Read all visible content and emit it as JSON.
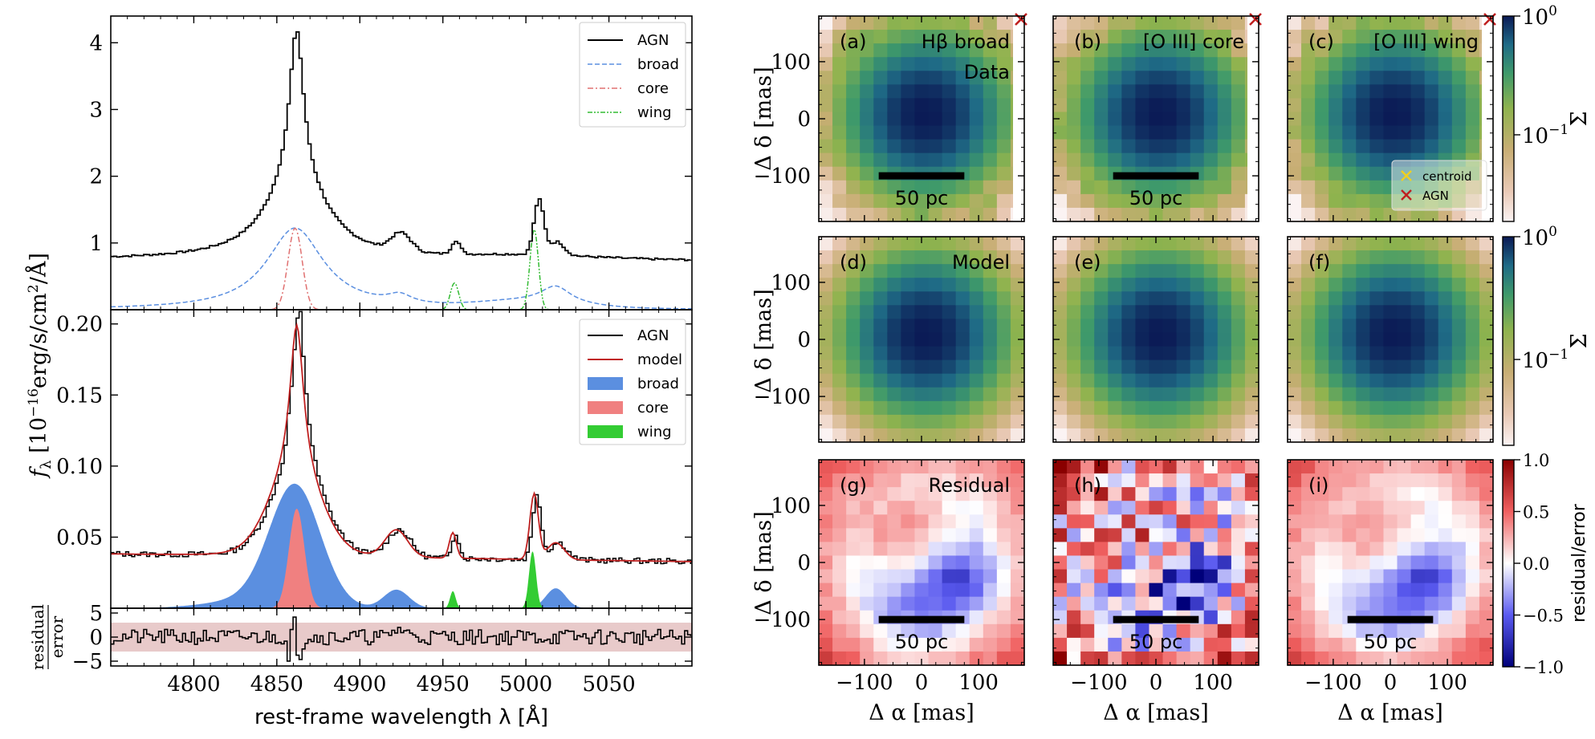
{
  "figure": {
    "xlabel": "rest-frame wavelength λ [Å]",
    "ylabel": "f_λ [10^{-16} erg/s/cm^2/Å]",
    "resid_ylabel_num": "residual",
    "resid_ylabel_den": "error",
    "map_xlabel": "Δ α [mas]",
    "map_ylabel": "Δ δ [mas]",
    "colorbar_sigma_label": "Σ",
    "colorbar_resid_label": "residual/error",
    "scalebar_label": "50 pc"
  },
  "chart_data": [
    {
      "id": "spectrum_top",
      "type": "line",
      "x_range": [
        4750,
        5100
      ],
      "ylim": [
        0,
        4.4
      ],
      "xticks": [
        4800,
        4850,
        4900,
        4950,
        5000,
        5050
      ],
      "yticks": [
        1,
        2,
        3,
        4
      ],
      "xtick_labels_shown": false,
      "legend": {
        "placement": "top-right",
        "entries": [
          {
            "label": "AGN",
            "color": "#000000",
            "style": "solid"
          },
          {
            "label": "broad",
            "color": "#5b8fe0",
            "style": "dashed"
          },
          {
            "label": "core",
            "color": "#e07070",
            "style": "dashdot"
          },
          {
            "label": "wing",
            "color": "#33bb33",
            "style": "dashdotdot"
          }
        ]
      },
      "continuum": 0.75,
      "peaks": {
        "Hbeta": {
          "x": 4861,
          "y": 4.15
        },
        "OIII_5007": {
          "x": 5007,
          "y": 1.62
        },
        "OIII_4959": {
          "x": 4959,
          "y": 0.98
        },
        "FeII_4924": {
          "x": 4924,
          "y": 1.06
        }
      },
      "components": {
        "broad_Hbeta": {
          "center": 4861,
          "peak": 1.25,
          "fwhm": 45
        },
        "core_Hbeta": {
          "center": 4861,
          "peak": 1.22,
          "fwhm": 10
        },
        "broad_4924": {
          "center": 4924,
          "peak": 0.15,
          "fwhm": 22
        },
        "broad_5018": {
          "center": 5018,
          "peak": 0.25,
          "fwhm": 24
        },
        "broad_OIII": {
          "center": 5000,
          "peak": 0.12,
          "fwhm": 60
        },
        "wing_4959": {
          "center": 4957,
          "peak": 0.4,
          "fwhm": 6
        },
        "wing_5007": {
          "center": 5005,
          "peak": 1.2,
          "fwhm": 6
        }
      }
    },
    {
      "id": "spectrum_middle",
      "type": "line",
      "x_range": [
        4750,
        5100
      ],
      "ylim": [
        0,
        0.21
      ],
      "xticks": [
        4800,
        4850,
        4900,
        4950,
        5000,
        5050
      ],
      "yticks": [
        0.05,
        0.1,
        0.15,
        0.2
      ],
      "ytick_labels": [
        "0.05",
        "0.10",
        "0.15",
        "0.20"
      ],
      "xtick_labels_shown": false,
      "legend": {
        "placement": "top-right",
        "entries": [
          {
            "label": "AGN",
            "color": "#000000",
            "kind": "line"
          },
          {
            "label": "model",
            "color": "#c02020",
            "kind": "line"
          },
          {
            "label": "broad",
            "color": "#5b8fe0",
            "kind": "patch"
          },
          {
            "label": "core",
            "color": "#f08080",
            "kind": "patch"
          },
          {
            "label": "wing",
            "color": "#33cc33",
            "kind": "patch"
          }
        ]
      },
      "continuum": 0.038,
      "peaks": {
        "Hbeta": {
          "x": 4861,
          "y": 0.2
        },
        "OIII_5007": {
          "x": 5005,
          "y": 0.085
        },
        "OIII_4959": {
          "x": 4957,
          "y": 0.058
        },
        "FeII_4924": {
          "x": 4922,
          "y": 0.059
        }
      },
      "filled_components": {
        "broad_Hbeta": {
          "center": 4861,
          "peak": 0.084,
          "fwhm": 36
        },
        "core_Hbeta": {
          "center": 4862,
          "peak": 0.07,
          "fwhm": 11
        },
        "broad_4924": {
          "center": 4922,
          "peak": 0.013,
          "fwhm": 18
        },
        "broad_5018": {
          "center": 5018,
          "peak": 0.014,
          "fwhm": 14
        },
        "wing_4959": {
          "center": 4956,
          "peak": 0.012,
          "fwhm": 4
        },
        "wing_5007": {
          "center": 5004,
          "peak": 0.04,
          "fwhm": 5
        }
      }
    },
    {
      "id": "spectrum_residual",
      "type": "line",
      "x_range": [
        4750,
        5100
      ],
      "ylim": [
        -6,
        6
      ],
      "yticks": [
        -5,
        0,
        5
      ],
      "ytick_labels": [
        "−5",
        "0",
        "5"
      ],
      "xticks": [
        4800,
        4850,
        4900,
        4950,
        5000,
        5050
      ],
      "xtick_labels": [
        "4800",
        "4850",
        "4900",
        "4950",
        "5000",
        "5050"
      ],
      "band": [
        -3,
        3
      ]
    },
    {
      "id": "maps",
      "type": "heatmap",
      "x_range": [
        -180,
        180
      ],
      "y_range": [
        -180,
        180
      ],
      "xticks": [
        -100,
        0,
        100
      ],
      "xtick_labels": [
        "−100",
        "0",
        "100"
      ],
      "yticks": [
        -100,
        0,
        100
      ],
      "ytick_labels": [
        "−100",
        "0",
        "100"
      ],
      "grid_n": 15,
      "panels": [
        {
          "letter": "(a)",
          "title": "Hβ broad",
          "row_title": "Data",
          "kind": "data",
          "center": [
            0.5,
            0.5
          ]
        },
        {
          "letter": "(b)",
          "title": "[O III] core",
          "kind": "data",
          "center": [
            0.5,
            0.5
          ]
        },
        {
          "letter": "(c)",
          "title": "[O III] wing",
          "kind": "data",
          "center": [
            0.5,
            0.5
          ]
        },
        {
          "letter": "(d)",
          "title": "Model",
          "kind": "model"
        },
        {
          "letter": "(e)",
          "title": "",
          "kind": "model"
        },
        {
          "letter": "(f)",
          "title": "",
          "kind": "model"
        },
        {
          "letter": "(g)",
          "title": "Residual",
          "kind": "resid"
        },
        {
          "letter": "(h)",
          "title": "",
          "kind": "resid"
        },
        {
          "letter": "(i)",
          "title": "",
          "kind": "resid"
        }
      ],
      "map_legend": [
        {
          "label": "centroid",
          "color": "#f0d020",
          "marker": "x"
        },
        {
          "label": "AGN",
          "color": "#c02020",
          "marker": "x"
        }
      ],
      "sigma_colorbar": {
        "ticks": [
          "10^0",
          "10^{-1}"
        ]
      },
      "resid_colorbar": {
        "range": [
          -1,
          1
        ],
        "ticks": [
          1.0,
          0.5,
          0.0,
          -0.5,
          -1.0
        ],
        "tick_labels": [
          "1.0",
          "0.5",
          "0.0",
          "−0.5",
          "−1.0"
        ]
      }
    }
  ]
}
